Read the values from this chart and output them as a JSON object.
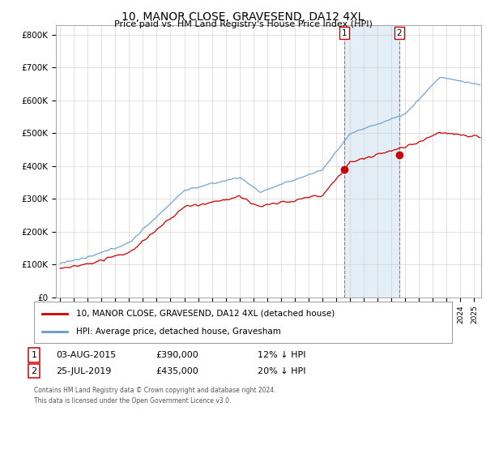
{
  "title": "10, MANOR CLOSE, GRAVESEND, DA12 4XL",
  "subtitle": "Price paid vs. HM Land Registry's House Price Index (HPI)",
  "ylabel_ticks": [
    "£0",
    "£100K",
    "£200K",
    "£300K",
    "£400K",
    "£500K",
    "£600K",
    "£700K",
    "£800K"
  ],
  "ytick_values": [
    0,
    100000,
    200000,
    300000,
    400000,
    500000,
    600000,
    700000,
    800000
  ],
  "ylim": [
    0,
    830000
  ],
  "xlim_start": 1994.7,
  "xlim_end": 2025.5,
  "transaction1": {
    "date_x": 2015.58,
    "price": 390000,
    "label": "1"
  },
  "transaction2": {
    "date_x": 2019.56,
    "price": 435000,
    "label": "2"
  },
  "shade_color": "#cce0f0",
  "red_line_color": "#cc0000",
  "blue_line_color": "#6699cc",
  "legend_label_red": "10, MANOR CLOSE, GRAVESEND, DA12 4XL (detached house)",
  "legend_label_blue": "HPI: Average price, detached house, Gravesham",
  "row1_num": "1",
  "row1_date": "03-AUG-2015",
  "row1_price": "£390,000",
  "row1_pct": "12% ↓ HPI",
  "row2_num": "2",
  "row2_date": "25-JUL-2019",
  "row2_price": "£435,000",
  "row2_pct": "20% ↓ HPI",
  "footer": "Contains HM Land Registry data © Crown copyright and database right 2024.\nThis data is licensed under the Open Government Licence v3.0.",
  "background_color": "#ffffff",
  "grid_color": "#cccccc"
}
